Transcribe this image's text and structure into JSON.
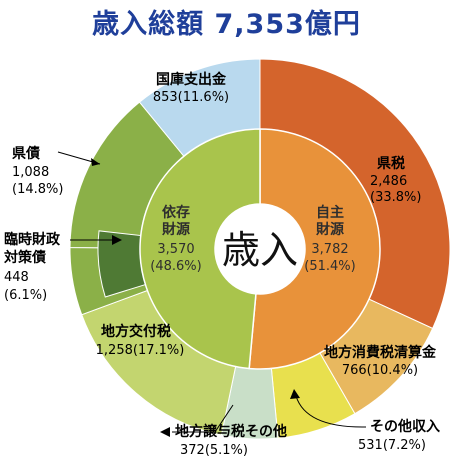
{
  "title": "歳入総額 7,353億円",
  "center_label": "歳入",
  "chart_data": [
    {
      "type": "pie",
      "ring": "outer",
      "unit": "億円",
      "slices": [
        {
          "label": "県税",
          "value": 2486,
          "value_text": "2,486",
          "pct_text": "(33.8%)",
          "color": "#d4642c"
        },
        {
          "label": "地方消費税清算金",
          "value": 766,
          "value_text": "766",
          "pct_text": "(10.4%)",
          "color": "#e8b85f"
        },
        {
          "label": "その他収入",
          "value": 531,
          "value_text": "531",
          "pct_text": "(7.2%)",
          "color": "#e8e04e"
        },
        {
          "label": "地方譲与税その他",
          "value": 372,
          "value_text": "372",
          "pct_text": "(5.1%)",
          "color": "#c9dfc8"
        },
        {
          "label": "地方交付税",
          "value": 1258,
          "value_text": "1,258",
          "pct_text": "(17.1%)",
          "color": "#c3d56f"
        },
        {
          "label": "臨時財政対策債",
          "value": 448,
          "value_text": "448",
          "pct_text": "(6.1%)",
          "color": "#8bb048"
        },
        {
          "label": "県債",
          "value": 1088,
          "value_text": "1,088",
          "pct_text": "(14.8%)",
          "color": "#8bb048"
        },
        {
          "label": "国庫支出金",
          "value": 853,
          "value_text": "853",
          "pct_text": "(11.6%)",
          "color": "#b9d9ee"
        }
      ]
    },
    {
      "type": "pie",
      "ring": "inner",
      "unit": "億円",
      "slices": [
        {
          "label": "自主財源",
          "value": 3782,
          "value_text": "3,782",
          "pct_text": "(51.4%)",
          "color": "#e8923a"
        },
        {
          "label": "依存財源",
          "value": 3570,
          "value_text": "3,570",
          "pct_text": "(48.6%)",
          "color": "#a9c44c"
        }
      ]
    }
  ],
  "colors": {
    "title": "#1f3f9a",
    "inner_label": "#2e2e2e",
    "overlay_dark_green": "#4f7a34",
    "outline": "#ffffff"
  }
}
